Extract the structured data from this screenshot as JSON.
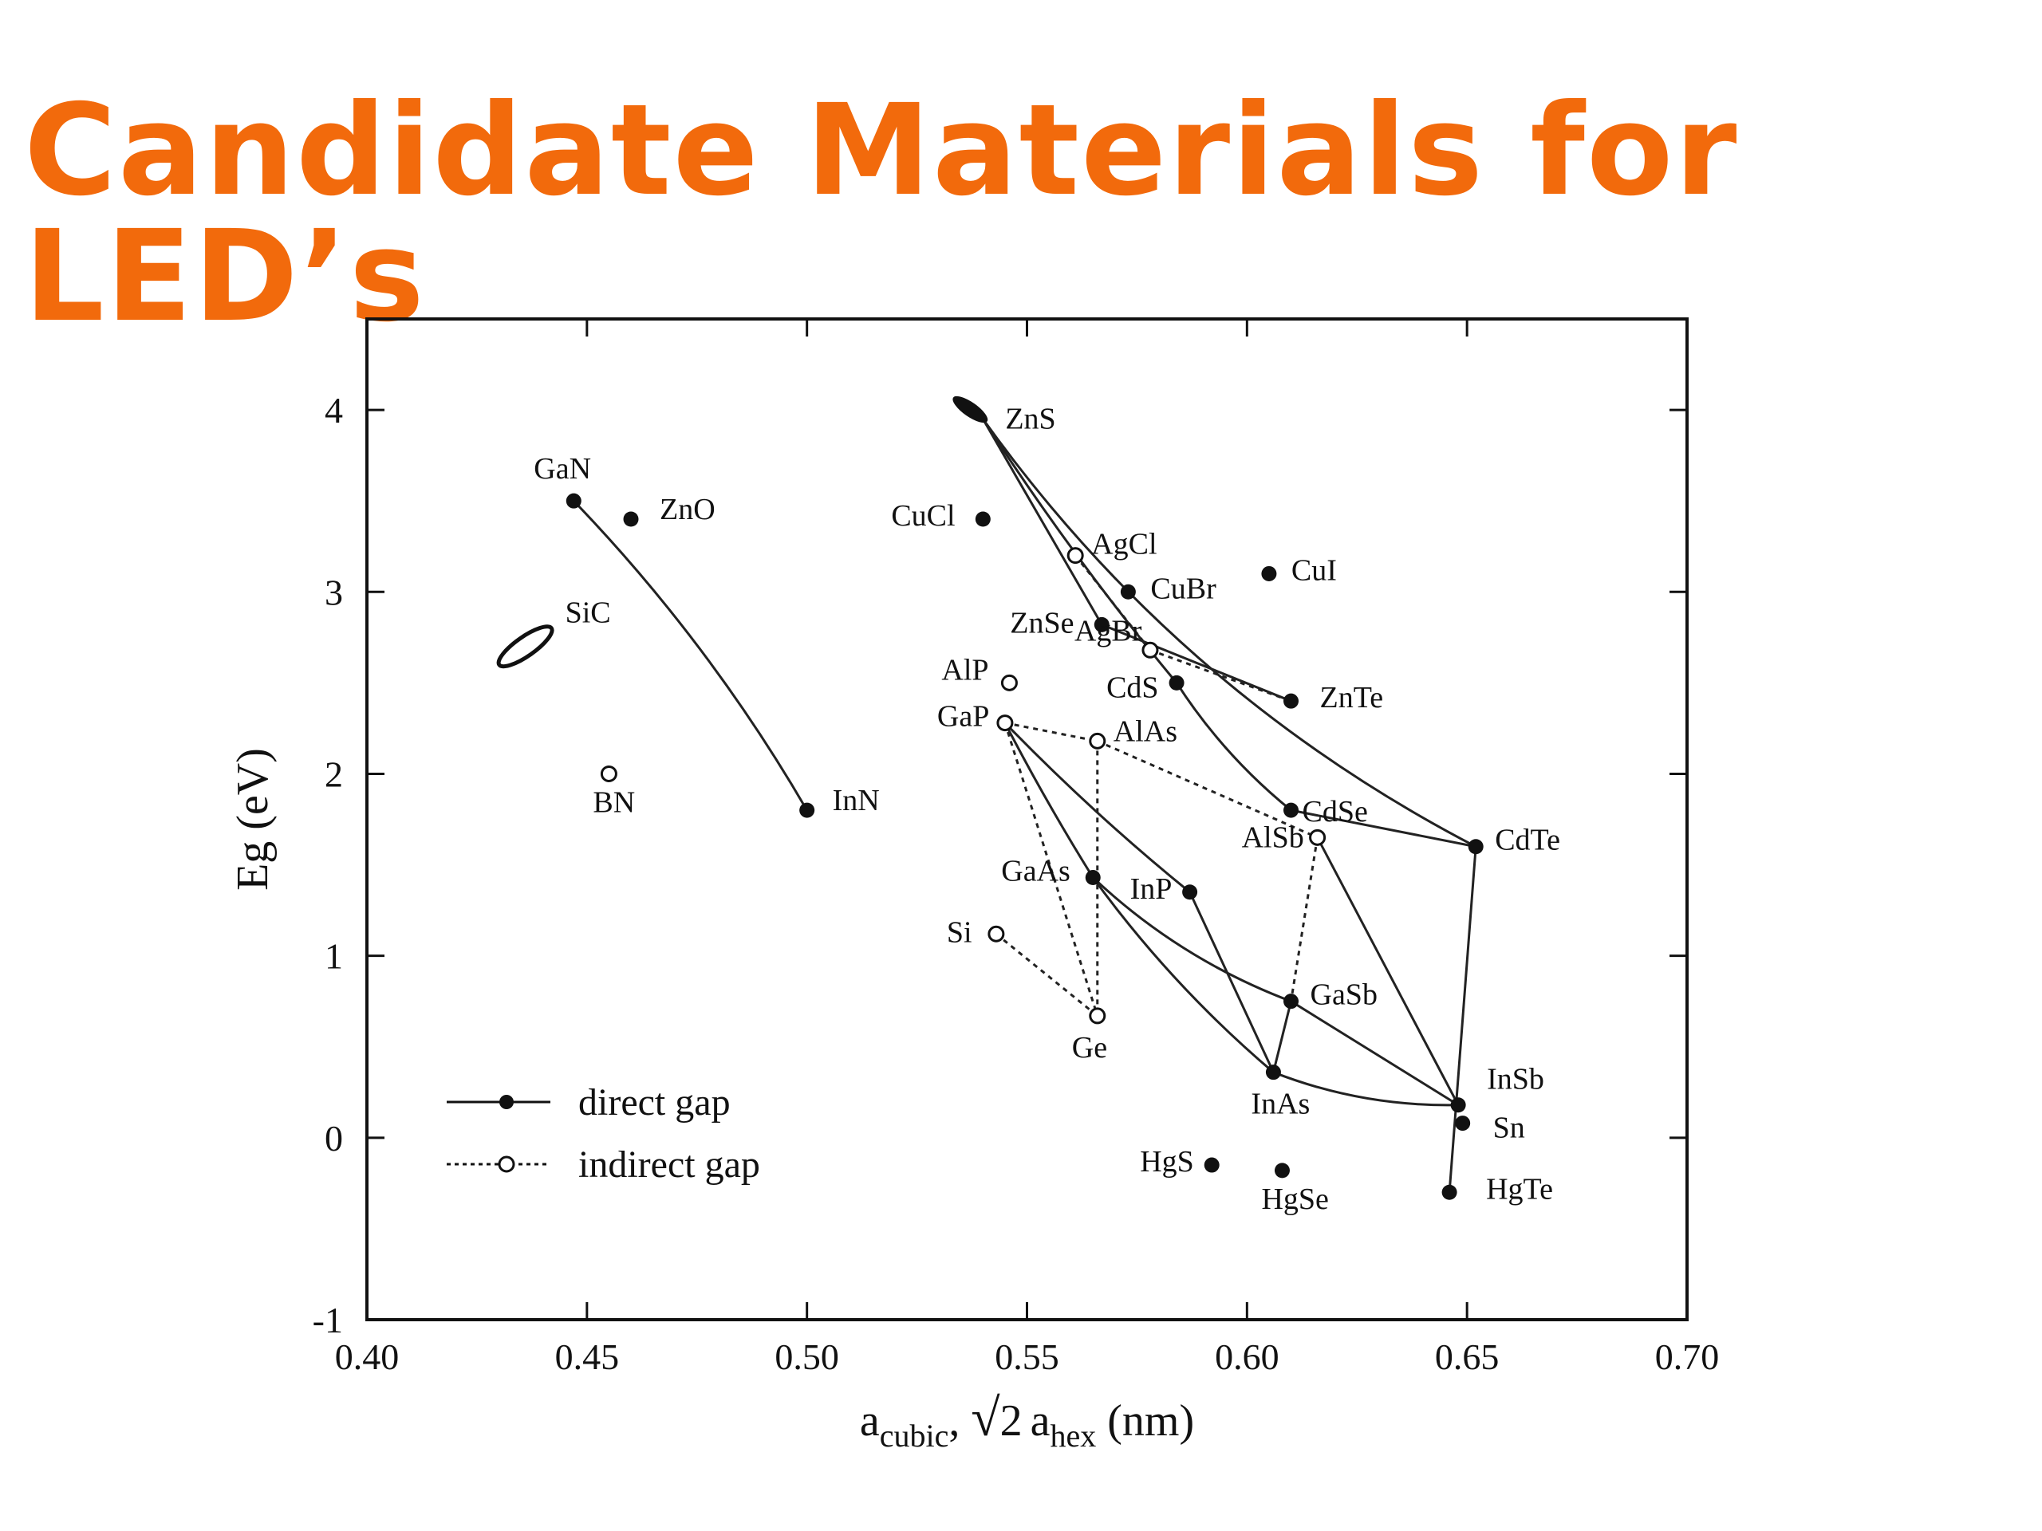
{
  "slide": {
    "title": "Candidate Materials for LED’s",
    "title_color": "#f26a0c"
  },
  "chart_data": {
    "type": "scatter",
    "title": "",
    "xlabel": "a_cubic, √2 a_hex (nm)",
    "xlabel_parts": {
      "a": "a",
      "sub1": "cubic",
      "sep": ", ",
      "root": "√",
      "two": "2",
      "a2": "a",
      "sub2": "hex",
      "unit": " (nm)"
    },
    "ylabel": "Eg (eV)",
    "xlim": [
      0.4,
      0.7
    ],
    "ylim": [
      -1,
      4.5
    ],
    "xticks": [
      0.4,
      0.45,
      0.5,
      0.55,
      0.6,
      0.65,
      0.7
    ],
    "xtick_labels": [
      "0.40",
      "0.45",
      "0.50",
      "0.55",
      "0.60",
      "0.65",
      "0.70"
    ],
    "yticks": [
      -1,
      0,
      1,
      2,
      3,
      4
    ],
    "ytick_labels": [
      "-1",
      "0",
      "1",
      "2",
      "3",
      "4"
    ],
    "grid": false,
    "legend": {
      "placement": "bottom-left",
      "entries": [
        {
          "label": "direct gap",
          "style": "solid",
          "marker": "filled"
        },
        {
          "label": "indirect gap",
          "style": "dotted",
          "marker": "open"
        }
      ]
    },
    "points": [
      {
        "name": "GaN",
        "x": 0.447,
        "y": 3.5,
        "gap": "direct"
      },
      {
        "name": "ZnO",
        "x": 0.46,
        "y": 3.4,
        "gap": "direct"
      },
      {
        "name": "InN",
        "x": 0.5,
        "y": 1.8,
        "gap": "direct"
      },
      {
        "name": "BN",
        "x": 0.455,
        "y": 2.0,
        "gap": "indirect"
      },
      {
        "name": "ZnS",
        "x": 0.54,
        "y": 3.95,
        "gap": "direct"
      },
      {
        "name": "CuCl",
        "x": 0.54,
        "y": 3.4,
        "gap": "direct"
      },
      {
        "name": "AgCl",
        "x": 0.561,
        "y": 3.2,
        "gap": "indirect"
      },
      {
        "name": "CuI",
        "x": 0.605,
        "y": 3.1,
        "gap": "direct"
      },
      {
        "name": "CuBr",
        "x": 0.573,
        "y": 3.0,
        "gap": "direct"
      },
      {
        "name": "ZnSe",
        "x": 0.567,
        "y": 2.82,
        "gap": "direct"
      },
      {
        "name": "AgBr",
        "x": 0.578,
        "y": 2.68,
        "gap": "indirect"
      },
      {
        "name": "CdS",
        "x": 0.584,
        "y": 2.5,
        "gap": "direct"
      },
      {
        "name": "ZnTe",
        "x": 0.61,
        "y": 2.4,
        "gap": "direct"
      },
      {
        "name": "AlP",
        "x": 0.546,
        "y": 2.5,
        "gap": "indirect"
      },
      {
        "name": "GaP",
        "x": 0.545,
        "y": 2.28,
        "gap": "indirect"
      },
      {
        "name": "AlAs",
        "x": 0.566,
        "y": 2.18,
        "gap": "indirect"
      },
      {
        "name": "CdSe",
        "x": 0.61,
        "y": 1.8,
        "gap": "direct"
      },
      {
        "name": "AlSb",
        "x": 0.616,
        "y": 1.65,
        "gap": "indirect"
      },
      {
        "name": "CdTe",
        "x": 0.652,
        "y": 1.6,
        "gap": "direct"
      },
      {
        "name": "GaAs",
        "x": 0.565,
        "y": 1.43,
        "gap": "direct"
      },
      {
        "name": "InP",
        "x": 0.587,
        "y": 1.35,
        "gap": "direct"
      },
      {
        "name": "Si",
        "x": 0.543,
        "y": 1.12,
        "gap": "indirect"
      },
      {
        "name": "GaSb",
        "x": 0.61,
        "y": 0.75,
        "gap": "direct"
      },
      {
        "name": "Ge",
        "x": 0.566,
        "y": 0.67,
        "gap": "indirect"
      },
      {
        "name": "InAs",
        "x": 0.606,
        "y": 0.36,
        "gap": "direct"
      },
      {
        "name": "InSb",
        "x": 0.648,
        "y": 0.18,
        "gap": "direct"
      },
      {
        "name": "Sn",
        "x": 0.649,
        "y": 0.08,
        "gap": "direct"
      },
      {
        "name": "HgS",
        "x": 0.592,
        "y": -0.15,
        "gap": "direct"
      },
      {
        "name": "HgSe",
        "x": 0.608,
        "y": -0.18,
        "gap": "direct"
      },
      {
        "name": "HgTe",
        "x": 0.646,
        "y": -0.3,
        "gap": "direct"
      }
    ],
    "ellipse": {
      "name": "SiC",
      "x": 0.436,
      "y": 2.7
    }
  }
}
